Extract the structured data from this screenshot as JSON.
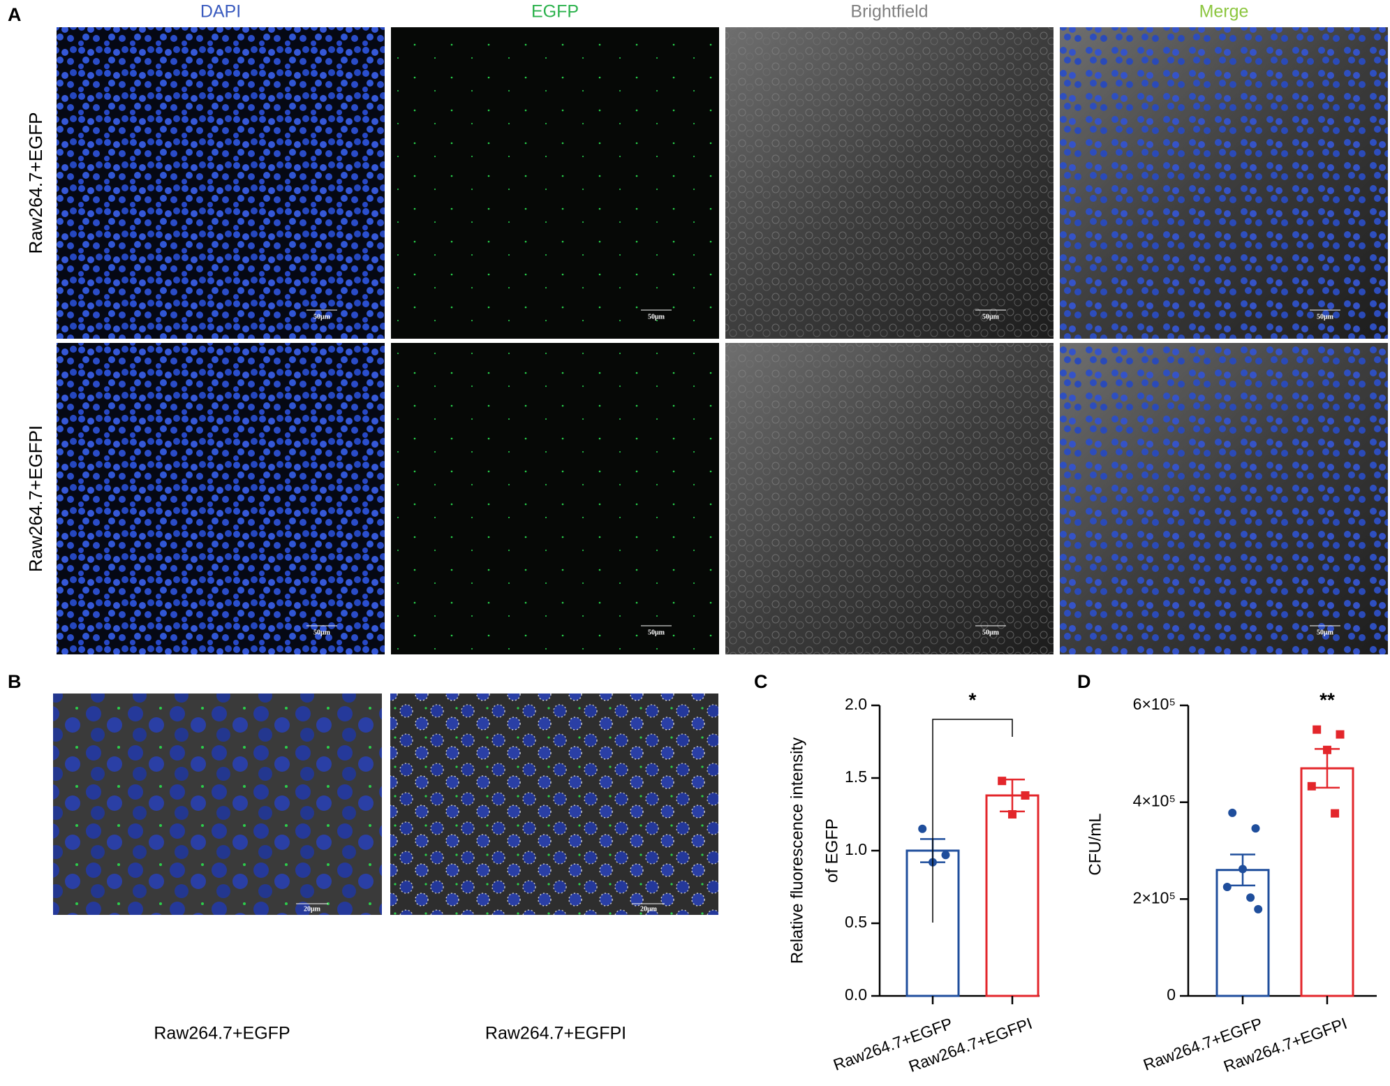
{
  "panel_labels": [
    "A",
    "B",
    "C",
    "D"
  ],
  "panel_a": {
    "column_titles": [
      "DAPI",
      "EGFP",
      "Brightfield",
      "Merge"
    ],
    "row_labels": [
      "Raw264.7+EGFP",
      "Raw264.7+EGFPI"
    ],
    "scale_bars": [
      "50μm",
      "50μm",
      "50μm",
      "50μm",
      "50μm",
      "50μm",
      "50μm",
      "50μm"
    ]
  },
  "panel_b": {
    "captions": [
      "Raw264.7+EGFP",
      "Raw264.7+EGFPI"
    ],
    "scale_bars": [
      "20μm",
      "20μm"
    ]
  },
  "chart_data": [
    {
      "type": "bar",
      "y_label": [
        "Relative fluorescence intensity",
        "of EGFP"
      ],
      "categories": [
        "Raw264.7+EGFP",
        "Raw264.7+EGFPI"
      ],
      "colors": [
        "#1f4e9c",
        "#e3262b"
      ],
      "values": [
        1.0,
        1.38
      ],
      "errors": [
        0.08,
        0.11
      ],
      "points": [
        [
          1.15,
          0.97,
          0.92
        ],
        [
          1.48,
          1.38,
          1.25
        ]
      ],
      "significance": "*",
      "ylim": [
        0,
        2
      ],
      "yticks": [
        {
          "value": 0,
          "label": "0.0"
        },
        0.5,
        {
          "value": 1,
          "label": "1.0"
        },
        1.5,
        {
          "value": 2,
          "label": "2.0"
        }
      ]
    },
    {
      "type": "bar",
      "y_label": [
        "CFU/mL"
      ],
      "categories": [
        "Raw264.7+EGFP",
        "Raw264.7+EGFPI"
      ],
      "colors": [
        "#1f4e9c",
        "#e3262b"
      ],
      "values": [
        260000,
        470000
      ],
      "errors": [
        32000,
        40000
      ],
      "points": [
        [
          378000,
          346000,
          262000,
          225000,
          203000,
          179000
        ],
        [
          550000,
          540000,
          508000,
          433000,
          377000
        ]
      ],
      "significance": "**",
      "ylim": [
        0,
        600000
      ],
      "yticks": [
        0,
        {
          "value": 200000,
          "label": "2×10⁵"
        },
        {
          "value": 400000,
          "label": "4×10⁵"
        },
        {
          "value": 600000,
          "label": "6×10⁵"
        }
      ]
    }
  ]
}
